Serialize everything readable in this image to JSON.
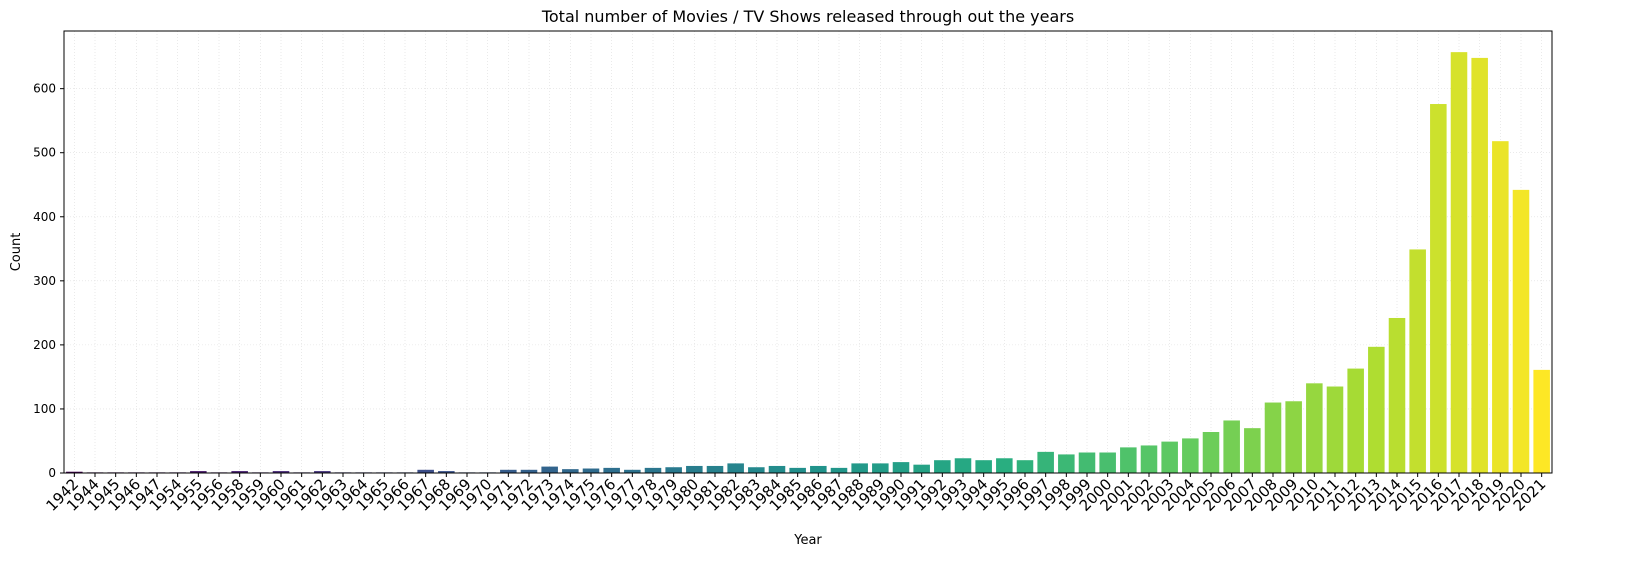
{
  "chart_data": {
    "type": "bar",
    "title": "Total number of Movies / TV Shows released through out the years",
    "xlabel": "Year",
    "ylabel": "Count",
    "ylim": [
      0,
      690
    ],
    "yticks": [
      0,
      100,
      200,
      300,
      400,
      500,
      600
    ],
    "grid": true,
    "palette": "viridis",
    "categories": [
      "1942",
      "1944",
      "1945",
      "1946",
      "1947",
      "1954",
      "1955",
      "1956",
      "1958",
      "1959",
      "1960",
      "1961",
      "1962",
      "1963",
      "1964",
      "1965",
      "1966",
      "1967",
      "1968",
      "1969",
      "1970",
      "1971",
      "1972",
      "1973",
      "1974",
      "1975",
      "1976",
      "1977",
      "1978",
      "1979",
      "1980",
      "1981",
      "1982",
      "1983",
      "1984",
      "1985",
      "1986",
      "1987",
      "1988",
      "1989",
      "1990",
      "1991",
      "1992",
      "1993",
      "1994",
      "1995",
      "1996",
      "1997",
      "1998",
      "1999",
      "2000",
      "2001",
      "2002",
      "2003",
      "2004",
      "2005",
      "2006",
      "2007",
      "2008",
      "2009",
      "2010",
      "2011",
      "2012",
      "2013",
      "2014",
      "2015",
      "2016",
      "2017",
      "2018",
      "2019",
      "2020",
      "2021"
    ],
    "values": [
      2,
      1,
      1,
      1,
      1,
      1,
      3,
      1,
      3,
      1,
      3,
      1,
      3,
      1,
      1,
      1,
      1,
      5,
      3,
      1,
      1,
      5,
      5,
      10,
      6,
      7,
      8,
      5,
      8,
      9,
      11,
      11,
      15,
      9,
      11,
      8,
      11,
      8,
      15,
      15,
      17,
      13,
      20,
      23,
      20,
      23,
      20,
      33,
      29,
      32,
      32,
      40,
      43,
      49,
      54,
      64,
      82,
      70,
      110,
      112,
      140,
      135,
      163,
      197,
      242,
      349,
      576,
      657,
      648,
      518,
      442,
      161
    ]
  }
}
